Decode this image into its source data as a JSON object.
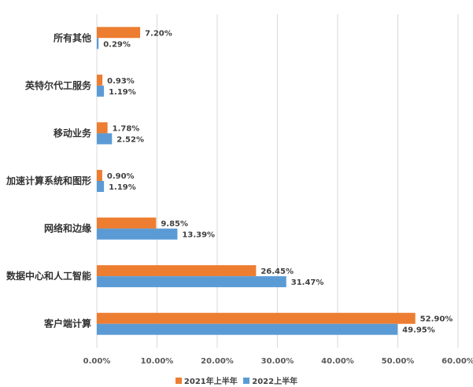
{
  "chart_data": {
    "type": "bar",
    "orientation": "horizontal",
    "categories": [
      "所有其他",
      "英特尔代工服务",
      "移动业务",
      "加速计算系统和图形",
      "网络和边缘",
      "数据中心和人工智能",
      "客户端计算"
    ],
    "series": [
      {
        "name": "2021年上半年",
        "values": [
          7.2,
          0.93,
          1.78,
          0.9,
          9.85,
          26.45,
          52.9
        ],
        "labels": [
          "7.20%",
          "0.93%",
          "1.78%",
          "0.90%",
          "9.85%",
          "26.45%",
          "52.90%"
        ],
        "color": "#ED7D31"
      },
      {
        "name": "2022上半年",
        "values": [
          0.29,
          1.19,
          2.52,
          1.19,
          13.39,
          31.47,
          49.95
        ],
        "labels": [
          "0.29%",
          "1.19%",
          "2.52%",
          "1.19%",
          "13.39%",
          "31.47%",
          "49.95%"
        ],
        "color": "#5B9BD5"
      }
    ],
    "xlim": [
      0,
      60
    ],
    "xticks": [
      0,
      10,
      20,
      30,
      40,
      50,
      60
    ],
    "xtick_labels": [
      "0.00%",
      "10.00%",
      "20.00%",
      "30.00%",
      "40.00%",
      "50.00%",
      "60.00%"
    ],
    "grid": true,
    "legend_position": "bottom"
  }
}
